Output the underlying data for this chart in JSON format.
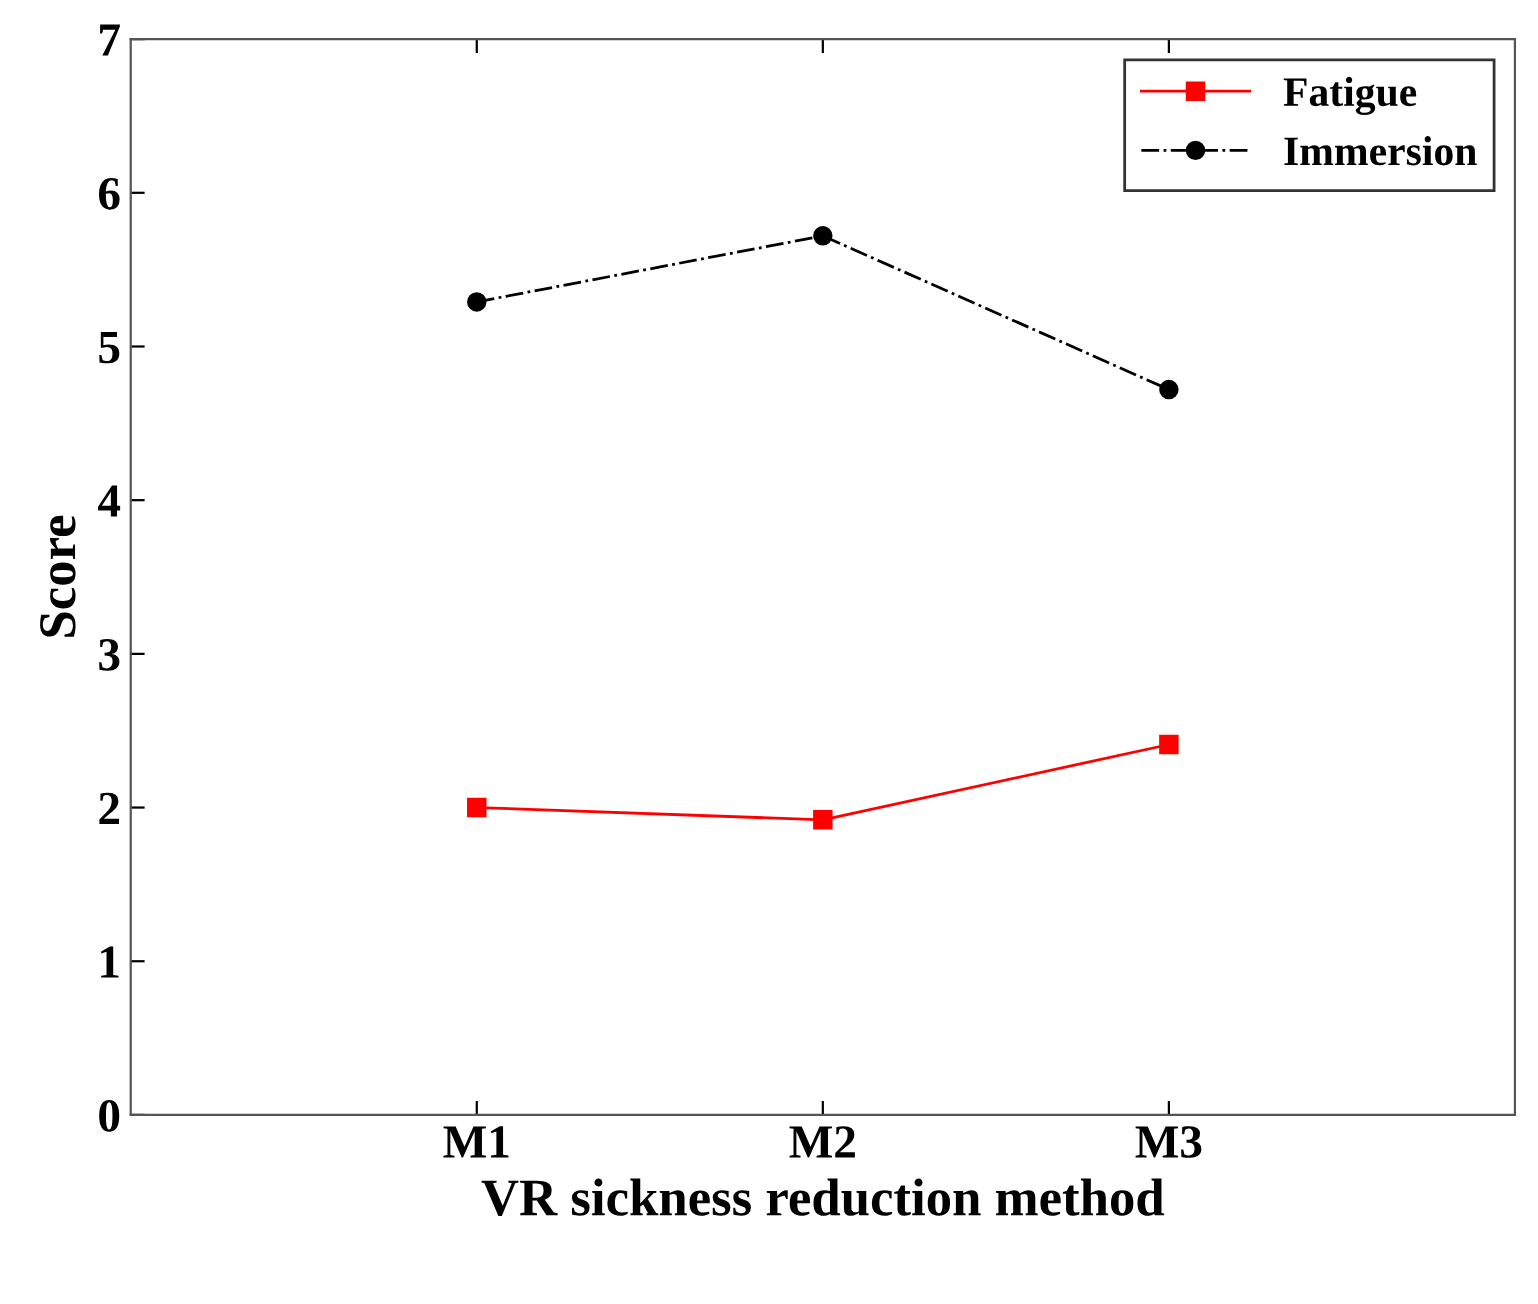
{
  "chart_data": {
    "type": "line",
    "xlabel": "VR sickness reduction method",
    "ylabel": "Score",
    "categories": [
      "M1",
      "M2",
      "M3"
    ],
    "series": [
      {
        "name": "Fatigue",
        "color": "#ff0000",
        "values": [
          2.0,
          1.92,
          2.41
        ],
        "marker": "square",
        "line_style": "solid"
      },
      {
        "name": "Immersion",
        "color": "#000000",
        "values": [
          5.29,
          5.72,
          4.72
        ],
        "marker": "circle",
        "line_style": "dashdot"
      }
    ],
    "ylim": [
      0,
      7
    ],
    "yticks": [
      0,
      1,
      2,
      3,
      4,
      5,
      6,
      7
    ],
    "grid": false,
    "legend": "top right"
  }
}
